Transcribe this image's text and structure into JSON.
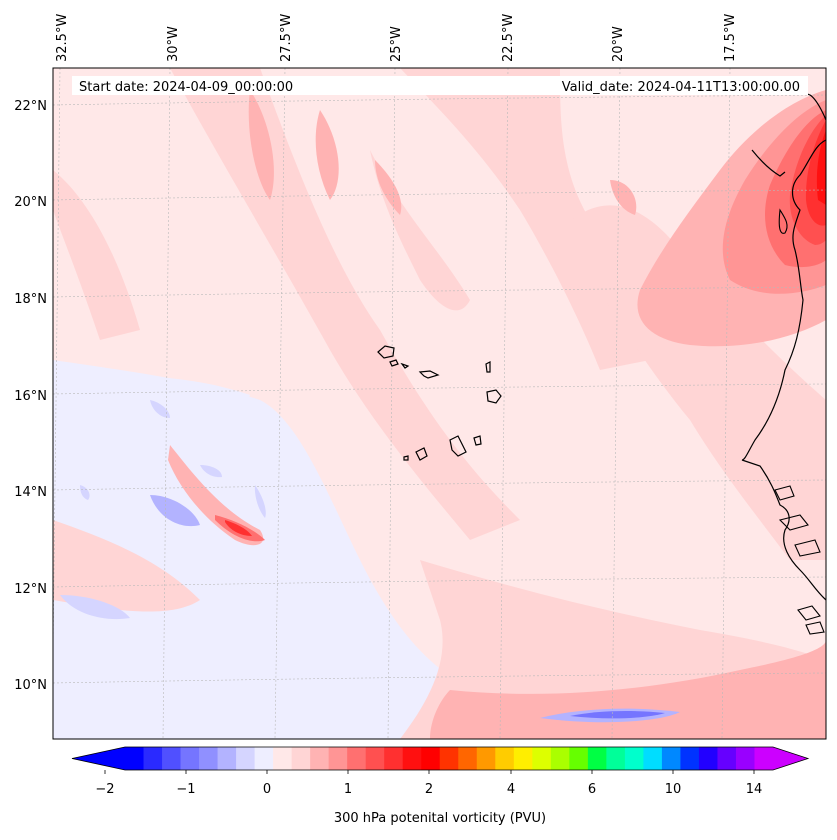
{
  "header": {
    "start_date": "Start date: 2024-04-09_00:00:00",
    "valid_date": "Valid_date: 2024-04-11T13:00:00.00"
  },
  "map": {
    "lon_labels": [
      "32.5°W",
      "30°W",
      "27.5°W",
      "25°W",
      "22.5°W",
      "20°W",
      "17.5°W"
    ],
    "lat_labels": [
      "22°N",
      "20°N",
      "18°N",
      "16°N",
      "14°N",
      "12°N",
      "10°N"
    ]
  },
  "colorbar": {
    "tick_labels": [
      "−2",
      "−1",
      "0",
      "1",
      "2",
      "4",
      "6",
      "10",
      "14"
    ],
    "label": "300 hPa potenital vorticity (PVU)",
    "colors": [
      "#0000ff",
      "#2a2aff",
      "#5050ff",
      "#7575ff",
      "#9090ff",
      "#b3b3ff",
      "#d5d5ff",
      "#eeeeff",
      "#ffe8e8",
      "#ffd5d5",
      "#ffb3b3",
      "#ff9595",
      "#ff7070",
      "#ff5050",
      "#ff3030",
      "#ff1010",
      "#ff0000",
      "#ff3300",
      "#ff6600",
      "#ff9900",
      "#ffcc00",
      "#ffee00",
      "#ddff00",
      "#aaff00",
      "#66ff00",
      "#00ff44",
      "#00ff99",
      "#00ffcc",
      "#00ddff",
      "#0088ff",
      "#0033ff",
      "#2200ff",
      "#6600ff",
      "#9900ff",
      "#cc00ff"
    ],
    "under_color": "#0000ff",
    "over_color": "#cc00ff"
  },
  "colors": {
    "base": "#ffe8e8",
    "light_pink": "#ffd5d5",
    "pink": "#ffb3b3",
    "salmon": "#ff9595",
    "red1": "#ff7070",
    "red2": "#ff5050",
    "red3": "#ff3030",
    "red4": "#ff1010",
    "blue_pale": "#eeeeff",
    "blue_light": "#d5d5ff",
    "blue_mid": "#b3b3ff",
    "blue_dark": "#7575ff"
  }
}
